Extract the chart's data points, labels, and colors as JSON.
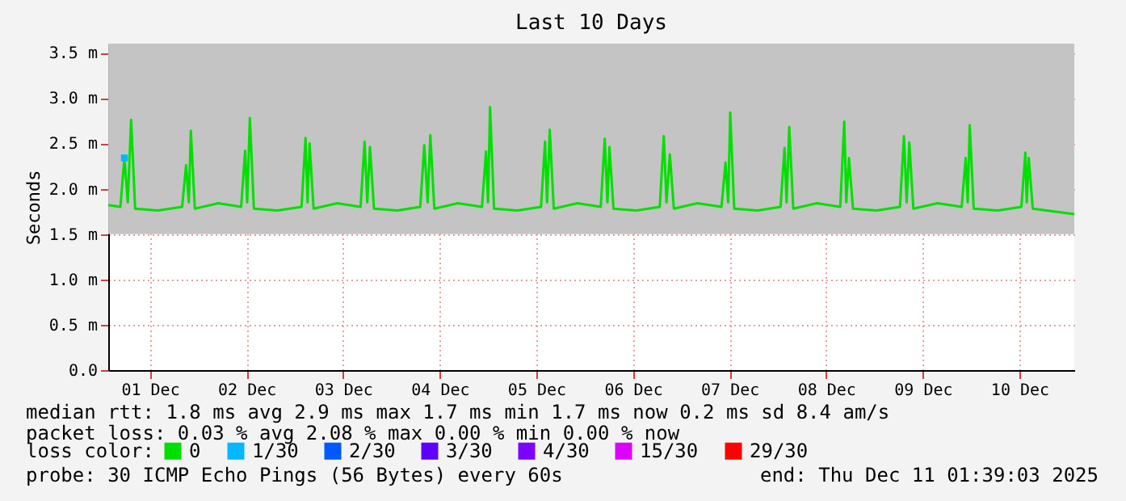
{
  "chart_data": {
    "type": "line",
    "title": "Last 10 Days",
    "ylabel": "Seconds",
    "legend_title": "loss color:",
    "legend": "bottom",
    "grid": true,
    "marker": "none",
    "line_style": "solid",
    "xlim": [
      "2025-12-01T01:39",
      "2025-12-11T01:39"
    ],
    "xticks": [
      {
        "value": "2025-12-01T12:00",
        "label": "01 Dec"
      },
      {
        "value": "2025-12-02T12:00",
        "label": "02 Dec"
      },
      {
        "value": "2025-12-03T12:00",
        "label": "03 Dec"
      },
      {
        "value": "2025-12-04T12:00",
        "label": "04 Dec"
      },
      {
        "value": "2025-12-05T12:00",
        "label": "05 Dec"
      },
      {
        "value": "2025-12-06T12:00",
        "label": "06 Dec"
      },
      {
        "value": "2025-12-07T12:00",
        "label": "07 Dec"
      },
      {
        "value": "2025-12-08T12:00",
        "label": "08 Dec"
      },
      {
        "value": "2025-12-09T12:00",
        "label": "09 Dec"
      },
      {
        "value": "2025-12-10T12:00",
        "label": "10 Dec"
      }
    ],
    "ylim": [
      0,
      3.6
    ],
    "yticks": [
      {
        "value": 0,
        "label": "0.0"
      },
      {
        "value": 0.5,
        "label": "0.5 m"
      },
      {
        "value": 1,
        "label": "1.0 m"
      },
      {
        "value": 1.5,
        "label": "1.5 m"
      },
      {
        "value": 2,
        "label": "2.0 m"
      },
      {
        "value": 2.5,
        "label": "2.5 m"
      },
      {
        "value": 3,
        "label": "3.0 m"
      },
      {
        "value": 3.5,
        "label": "3.5 m"
      }
    ],
    "series": [
      {
        "name": "0",
        "color": "#00e000",
        "x": [
          "2025-12-01T01:40",
          "2025-12-01T04:40",
          "2025-12-01T05:40",
          "2025-12-01T06:30",
          "2025-12-01T07:20",
          "2025-12-01T08:20",
          "2025-12-01T14:00",
          "2025-12-01T20:00",
          "2025-12-01T21:00",
          "2025-12-01T21:40",
          "2025-12-01T22:10",
          "2025-12-01T23:10",
          "2025-12-02T05:00",
          "2025-12-02T10:40",
          "2025-12-02T11:40",
          "2025-12-02T12:10",
          "2025-12-02T12:50",
          "2025-12-02T13:50",
          "2025-12-02T19:40",
          "2025-12-03T01:40",
          "2025-12-03T02:40",
          "2025-12-03T03:10",
          "2025-12-03T03:40",
          "2025-12-03T04:40",
          "2025-12-03T10:30",
          "2025-12-03T16:20",
          "2025-12-03T17:20",
          "2025-12-03T18:00",
          "2025-12-03T18:40",
          "2025-12-03T19:40",
          "2025-12-04T01:30",
          "2025-12-04T07:10",
          "2025-12-04T08:10",
          "2025-12-04T09:00",
          "2025-12-04T09:40",
          "2025-12-04T10:40",
          "2025-12-04T16:30",
          "2025-12-04T22:30",
          "2025-12-04T23:30",
          "2025-12-05T00:00",
          "2025-12-05T00:30",
          "2025-12-05T01:30",
          "2025-12-05T07:20",
          "2025-12-05T13:10",
          "2025-12-05T14:10",
          "2025-12-05T14:40",
          "2025-12-05T15:20",
          "2025-12-05T16:20",
          "2025-12-05T22:10",
          "2025-12-06T04:00",
          "2025-12-06T05:00",
          "2025-12-06T05:40",
          "2025-12-06T06:10",
          "2025-12-06T07:10",
          "2025-12-06T12:50",
          "2025-12-06T18:40",
          "2025-12-06T19:40",
          "2025-12-06T20:20",
          "2025-12-06T21:10",
          "2025-12-06T22:10",
          "2025-12-07T04:00",
          "2025-12-07T10:00",
          "2025-12-07T11:00",
          "2025-12-07T11:40",
          "2025-12-07T12:10",
          "2025-12-07T13:10",
          "2025-12-07T19:00",
          "2025-12-08T00:40",
          "2025-12-08T01:40",
          "2025-12-08T02:10",
          "2025-12-08T02:50",
          "2025-12-08T03:50",
          "2025-12-08T09:40",
          "2025-12-08T15:30",
          "2025-12-08T16:30",
          "2025-12-08T17:00",
          "2025-12-08T17:40",
          "2025-12-08T18:40",
          "2025-12-09T00:30",
          "2025-12-09T06:20",
          "2025-12-09T07:20",
          "2025-12-09T08:00",
          "2025-12-09T08:40",
          "2025-12-09T09:40",
          "2025-12-09T15:40",
          "2025-12-09T21:40",
          "2025-12-09T22:40",
          "2025-12-09T23:10",
          "2025-12-09T23:40",
          "2025-12-10T00:40",
          "2025-12-10T06:40",
          "2025-12-10T12:30",
          "2025-12-10T13:30",
          "2025-12-10T13:50",
          "2025-12-10T14:20",
          "2025-12-10T15:20",
          "2025-12-11T01:39"
        ],
        "values": [
          1.82,
          1.8,
          2.34,
          1.85,
          2.76,
          1.78,
          1.76,
          1.8,
          2.26,
          1.85,
          2.64,
          1.78,
          1.84,
          1.8,
          2.42,
          1.85,
          2.78,
          1.78,
          1.76,
          1.8,
          2.56,
          1.85,
          2.5,
          1.78,
          1.84,
          1.8,
          2.52,
          1.85,
          2.46,
          1.78,
          1.76,
          1.8,
          2.48,
          1.85,
          2.59,
          1.78,
          1.84,
          1.8,
          2.41,
          1.85,
          2.9,
          1.78,
          1.76,
          1.8,
          2.52,
          1.85,
          2.65,
          1.78,
          1.84,
          1.8,
          2.55,
          1.85,
          2.46,
          1.78,
          1.76,
          1.8,
          2.58,
          1.85,
          2.38,
          1.78,
          1.84,
          1.8,
          2.29,
          1.85,
          2.84,
          1.78,
          1.76,
          1.8,
          2.45,
          1.85,
          2.68,
          1.78,
          1.84,
          1.8,
          2.74,
          1.85,
          2.34,
          1.78,
          1.76,
          1.8,
          2.58,
          1.85,
          2.51,
          1.78,
          1.84,
          1.8,
          2.34,
          1.85,
          2.7,
          1.78,
          1.76,
          1.8,
          2.4,
          1.85,
          2.34,
          1.78,
          1.72
        ],
        "lower": [
          1.5,
          1.5,
          1.5,
          1.5,
          1.5,
          1.5,
          1.5,
          1.5,
          1.5,
          1.5,
          1.5,
          1.5,
          1.5,
          1.5,
          1.5,
          1.5,
          1.5,
          1.5,
          1.5,
          1.5,
          1.5,
          1.5,
          1.5,
          1.5,
          1.5,
          1.5,
          1.5,
          1.5,
          1.5,
          1.5,
          1.5,
          1.5,
          1.5,
          1.5,
          1.5,
          1.5,
          1.5,
          1.5,
          1.5,
          1.5,
          1.5,
          1.5,
          1.5,
          1.5,
          1.5,
          1.5,
          1.5,
          1.5,
          1.5,
          1.5,
          1.5,
          1.5,
          1.5,
          1.5,
          1.5,
          1.5,
          1.5,
          1.5,
          1.5,
          1.5,
          1.5,
          1.5,
          1.5,
          1.5,
          1.5,
          1.5,
          1.5,
          1.5,
          1.5,
          1.5,
          1.5,
          1.5,
          1.5,
          1.5,
          1.5,
          1.5,
          1.5,
          1.5,
          1.5,
          1.5,
          1.5,
          1.5,
          1.5,
          1.5,
          1.5,
          1.5,
          1.5,
          1.5,
          1.5,
          1.5,
          1.5,
          1.5,
          1.5,
          1.5,
          1.5,
          1.5,
          1.5
        ],
        "upper": [
          3.6,
          3.6,
          3.6,
          3.6,
          3.6,
          3.6,
          3.6,
          3.6,
          3.6,
          3.6,
          3.6,
          3.6,
          3.6,
          3.6,
          3.6,
          3.6,
          3.6,
          3.6,
          3.6,
          3.6,
          3.6,
          3.6,
          3.6,
          3.6,
          3.6,
          3.6,
          3.6,
          3.6,
          3.6,
          3.6,
          3.6,
          3.6,
          3.6,
          3.6,
          3.6,
          3.6,
          3.6,
          3.6,
          3.6,
          3.6,
          3.6,
          3.6,
          3.6,
          3.6,
          3.6,
          3.6,
          3.6,
          3.6,
          3.6,
          3.6,
          3.6,
          3.6,
          3.6,
          3.6,
          3.6,
          3.6,
          3.6,
          3.6,
          3.6,
          3.6,
          3.6,
          3.6,
          3.6,
          3.6,
          3.6,
          3.6,
          3.6,
          3.6,
          3.6,
          3.6,
          3.6,
          3.6,
          3.6,
          3.6,
          3.6,
          3.6,
          3.6,
          3.6,
          3.6,
          3.6,
          3.6,
          3.6,
          3.6,
          3.6,
          3.6,
          3.6,
          3.6,
          3.6,
          3.6,
          3.6,
          3.6,
          3.6,
          3.6,
          3.6,
          3.6,
          3.6,
          3.6
        ]
      },
      {
        "name": "1/30",
        "color": "#00b8ff",
        "type": "scatter",
        "marker": "square",
        "x": [
          "2025-12-01T05:40"
        ],
        "values": [
          2.34
        ]
      },
      {
        "name": "2/30",
        "color": "#0059ff",
        "type": "scatter",
        "marker": "square"
      },
      {
        "name": "3/30",
        "color": "#5e00ff",
        "type": "scatter",
        "marker": "square"
      },
      {
        "name": "4/30",
        "color": "#7e00ff",
        "type": "scatter",
        "marker": "square"
      },
      {
        "name": "15/30",
        "color": "#dd00ff",
        "type": "scatter",
        "marker": "square"
      },
      {
        "name": "29/30",
        "color": "#ff0000",
        "type": "scatter",
        "marker": "square"
      }
    ],
    "annotations": [
      "median rtt:  1.8 ms avg  2.9 ms max  1.7 ms min  1.7 ms now  0.2 ms sd  8.4   am/s",
      "packet loss: 0.03 % avg  2.08 % max  0.00 % min  0.00 % now",
      "probe:       30 ICMP Echo Pings (56 Bytes) every 60s",
      "end: Thu Dec 11 01:39:03 2025"
    ]
  }
}
